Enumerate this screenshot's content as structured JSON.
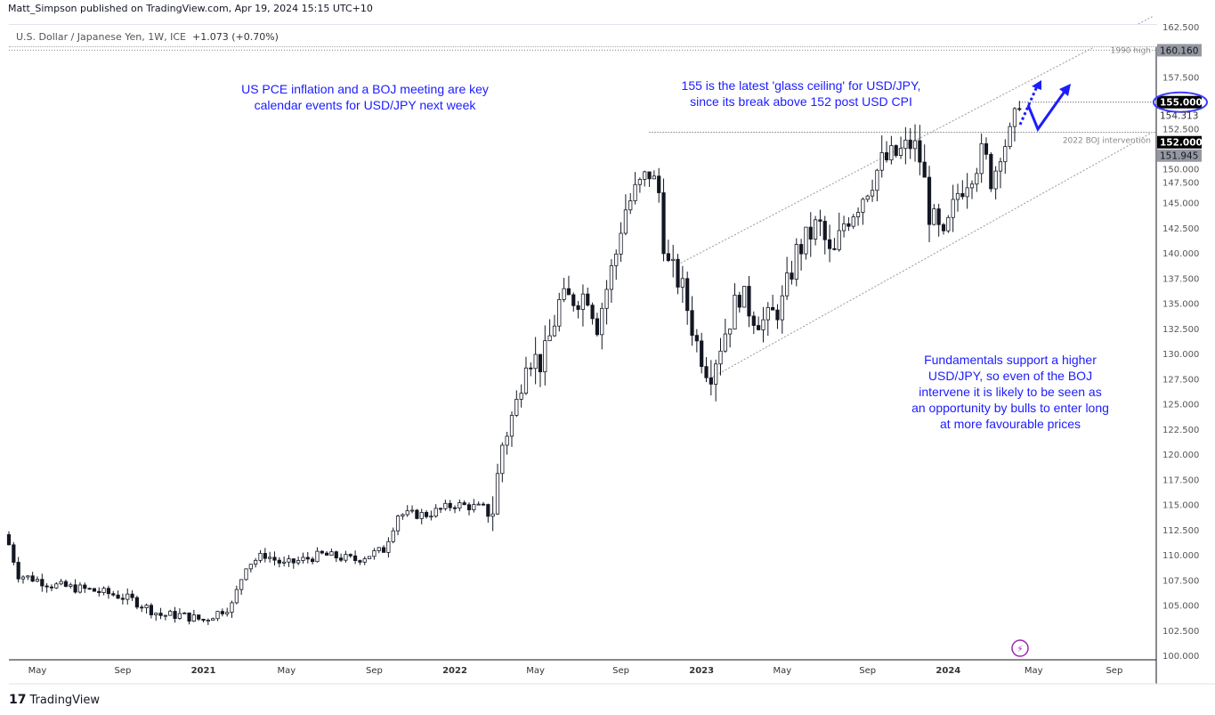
{
  "header": {
    "published": "Matt_Simpson published on TradingView.com, Apr 19, 2024 15:15 UTC+10",
    "symbol": "U.S. Dollar / Japanese Yen, 1W, ICE",
    "change": "+1.073 (+0.70%)"
  },
  "annotations": {
    "note1": [
      "US PCE inflation and a BOJ meeting are key",
      "calendar events for USD/JPY next week"
    ],
    "note2": [
      "155 is the latest 'glass ceiling' for USD/JPY,",
      "since its break above 152 post USD CPI"
    ],
    "note3": [
      "Fundamentals support a higher",
      "USD/JPY, so even of the BOJ",
      "intervene it is likely to be seen as",
      "an opportunity by bulls to enter long",
      "at more favourable prices"
    ],
    "line_1990": "1990 high",
    "line_2022": "2022 BOJ intervention"
  },
  "footer": {
    "brand": "TradingView"
  },
  "colors": {
    "note": "#1c1cff",
    "candle": "#131722",
    "axis_badge": "#9598a1"
  },
  "chart_data": {
    "type": "candlestick",
    "title": "U.S. Dollar / Japanese Yen, 1W",
    "ylim": [
      100,
      162.5
    ],
    "y_ticks": [
      "162.500",
      "157.500",
      "152.500",
      "150.000",
      "147.500",
      "145.000",
      "142.500",
      "140.000",
      "137.500",
      "135.000",
      "132.500",
      "130.000",
      "127.500",
      "125.000",
      "122.500",
      "120.000",
      "117.500",
      "115.000",
      "112.500",
      "110.000",
      "107.500",
      "105.000",
      "102.500",
      "100.000"
    ],
    "x_ticks": [
      {
        "label": "May",
        "week": 6
      },
      {
        "label": "Sep",
        "week": 24
      },
      {
        "label": "2021",
        "week": 41
      },
      {
        "label": "May",
        "week": 58.5
      },
      {
        "label": "Sep",
        "week": 77
      },
      {
        "label": "2022",
        "week": 94
      },
      {
        "label": "May",
        "week": 111
      },
      {
        "label": "Sep",
        "week": 129
      },
      {
        "label": "2023",
        "week": 146
      },
      {
        "label": "May",
        "week": 163
      },
      {
        "label": "Sep",
        "week": 181
      },
      {
        "label": "2024",
        "week": 198
      },
      {
        "label": "May",
        "week": 216
      },
      {
        "label": "Sep",
        "week": 233
      }
    ],
    "price_badges": [
      {
        "label": "160.160",
        "value": 160.16,
        "style": "gray"
      },
      {
        "label": "155.000",
        "value": 155,
        "style": "black"
      },
      {
        "label": "154.313",
        "value": 154.313,
        "style": "plain"
      },
      {
        "label": "152.000",
        "value": 152,
        "style": "black"
      },
      {
        "label": "151.945",
        "value": 151.945,
        "style": "gray"
      }
    ],
    "weekly_close_anchors": [
      [
        0,
        111
      ],
      [
        2,
        108
      ],
      [
        6,
        107.5
      ],
      [
        9,
        107
      ],
      [
        17,
        106.5
      ],
      [
        22.5,
        106
      ],
      [
        26,
        105.5
      ],
      [
        32,
        104
      ],
      [
        36,
        104
      ],
      [
        41,
        103.5
      ],
      [
        47,
        105
      ],
      [
        50,
        109
      ],
      [
        54,
        110
      ],
      [
        58,
        109
      ],
      [
        66,
        110
      ],
      [
        73,
        109.5
      ],
      [
        79,
        110.5
      ],
      [
        82,
        114
      ],
      [
        88,
        114
      ],
      [
        94,
        115
      ],
      [
        102,
        114.5
      ],
      [
        104,
        121
      ],
      [
        107,
        125
      ],
      [
        109,
        130
      ],
      [
        112.5,
        129
      ],
      [
        116,
        135
      ],
      [
        122,
        136
      ],
      [
        124,
        133
      ],
      [
        128,
        140
      ],
      [
        129.5,
        144
      ],
      [
        132,
        146
      ],
      [
        135,
        148
      ],
      [
        137,
        146
      ],
      [
        138.5,
        139
      ],
      [
        141.6,
        137
      ],
      [
        145,
        131
      ],
      [
        147.7,
        128
      ],
      [
        150,
        131
      ],
      [
        154,
        136
      ],
      [
        156.7,
        134
      ],
      [
        159.5,
        133
      ],
      [
        163,
        135
      ],
      [
        166,
        140
      ],
      [
        170.7,
        143
      ],
      [
        173.5,
        139
      ],
      [
        176,
        143
      ],
      [
        179,
        145
      ],
      [
        184,
        149
      ],
      [
        188,
        150
      ],
      [
        190.5,
        151
      ],
      [
        192.3,
        149
      ],
      [
        194,
        144
      ],
      [
        197,
        141
      ],
      [
        200,
        146
      ],
      [
        202.6,
        148
      ],
      [
        205.4,
        150
      ],
      [
        207.3,
        147
      ],
      [
        209,
        150.5
      ],
      [
        211,
        151.5
      ],
      [
        213,
        154.5
      ]
    ],
    "levels": [
      {
        "label": "1990 high",
        "value": 160.16
      },
      {
        "label": "2022 BOJ intervention",
        "value": 152
      },
      {
        "label": "155",
        "value": 155
      }
    ],
    "channel": {
      "upper": [
        [
          141.6,
          139
        ],
        [
          241,
          163.5
        ]
      ],
      "lower": [
        [
          147.7,
          127.5
        ],
        [
          241,
          152
        ]
      ]
    }
  }
}
